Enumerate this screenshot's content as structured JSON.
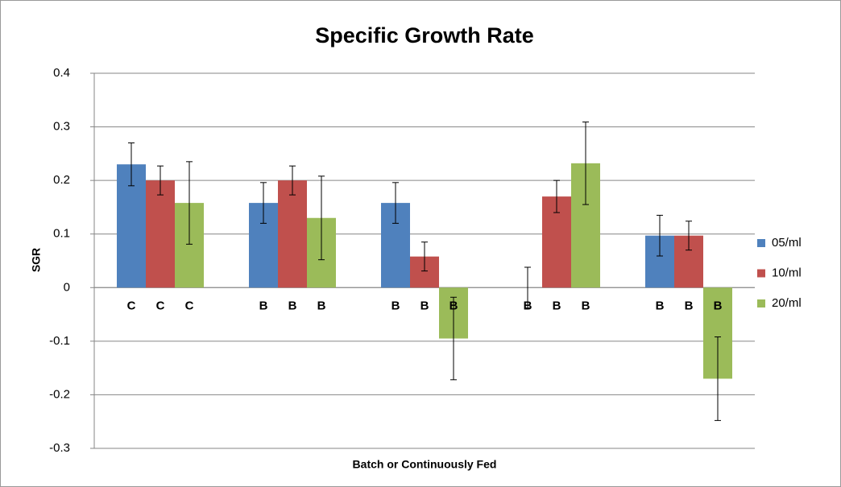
{
  "chart_data": {
    "type": "bar",
    "title": "Specific Growth Rate",
    "x_label": "Batch or Continuously Fed",
    "y_label": "SGR",
    "categories": [
      null,
      null,
      null,
      null,
      null
    ],
    "series": [
      {
        "name": "05/ml",
        "color": "#4f81bd",
        "values": [
          0.23,
          0.158,
          0.158,
          0,
          0.097
        ],
        "errors": [
          0.04,
          0.038,
          0.038,
          0.038,
          0.038
        ],
        "labels": [
          "C",
          "B",
          "B",
          "B",
          "B"
        ]
      },
      {
        "name": "10/ml",
        "color": "#c0504d",
        "values": [
          0.2,
          0.2,
          0.058,
          0.17,
          0.097
        ],
        "errors": [
          0.027,
          0.027,
          0.027,
          0.03,
          0.027
        ],
        "labels": [
          "C",
          "B",
          "B",
          "B",
          "B"
        ]
      },
      {
        "name": "20/ml",
        "color": "#9bbb59",
        "values": [
          0.158,
          0.13,
          -0.095,
          0.232,
          -0.17
        ],
        "errors": [
          0.077,
          0.078,
          0.077,
          0.077,
          0.078
        ],
        "labels": [
          "C",
          "B",
          "B",
          "B",
          "B"
        ]
      }
    ],
    "ylim": [
      -0.3,
      0.4
    ],
    "yticks": [
      -0.3,
      -0.2,
      -0.1,
      0,
      0.1,
      0.2,
      0.3,
      0.4
    ],
    "grid": true,
    "legend": "right"
  }
}
